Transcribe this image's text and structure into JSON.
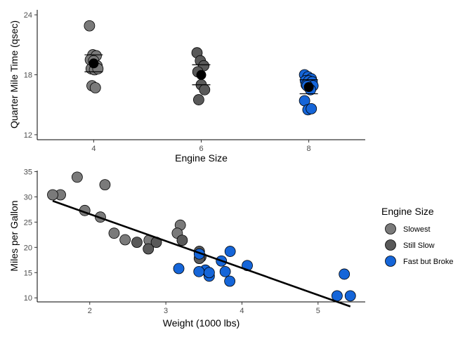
{
  "legend": {
    "title": "Engine Size",
    "position": "right",
    "items": [
      {
        "label": "Slowest",
        "color": "#7a7a7a"
      },
      {
        "label": "Still Slow",
        "color": "#595959"
      },
      {
        "label": "Fast but Broke",
        "color": "#1565d8"
      }
    ]
  },
  "chart_data": [
    {
      "type": "scatter",
      "xlabel": "Engine Size",
      "ylabel": "Quarter Mile Time (qsec)",
      "categories": [
        4,
        6,
        8
      ],
      "xlim": [
        2.95,
        9.05
      ],
      "ylim": [
        11.5,
        24.5
      ],
      "yticks": [
        12,
        18,
        24
      ],
      "grid": false,
      "series": [
        {
          "name": "Slowest",
          "color": "#7a7a7a",
          "points": [
            [
              4,
              22.9
            ],
            [
              4,
              20.0
            ],
            [
              4,
              19.9
            ],
            [
              4,
              19.5
            ],
            [
              4,
              19.4
            ],
            [
              4,
              18.9
            ],
            [
              4,
              18.6
            ],
            [
              4,
              18.5
            ],
            [
              4,
              18.6
            ],
            [
              4,
              16.9
            ],
            [
              4,
              16.7
            ]
          ]
        },
        {
          "name": "Still Slow",
          "color": "#595959",
          "points": [
            [
              6,
              20.2
            ],
            [
              6,
              19.4
            ],
            [
              6,
              18.9
            ],
            [
              6,
              18.3
            ],
            [
              6,
              17.0
            ],
            [
              6,
              16.5
            ],
            [
              6,
              15.5
            ]
          ]
        },
        {
          "name": "Fast but Broke",
          "color": "#1565d8",
          "points": [
            [
              8,
              18.0
            ],
            [
              8,
              17.8
            ],
            [
              8,
              17.6
            ],
            [
              8,
              17.4
            ],
            [
              8,
              17.4
            ],
            [
              8,
              17.3
            ],
            [
              8,
              17.0
            ],
            [
              8,
              17.0
            ],
            [
              8,
              16.9
            ],
            [
              8,
              16.9
            ],
            [
              8,
              16.5
            ],
            [
              8,
              15.4
            ],
            [
              8,
              14.5
            ],
            [
              8,
              14.6
            ]
          ]
        }
      ],
      "summary": [
        {
          "x": 4,
          "mean": 19.14,
          "lower": 18.3,
          "upper": 20.0
        },
        {
          "x": 6,
          "mean": 17.98,
          "lower": 17.0,
          "upper": 19.0
        },
        {
          "x": 8,
          "mean": 16.77,
          "lower": 16.1,
          "upper": 17.5
        }
      ]
    },
    {
      "type": "scatter",
      "xlabel": "Weight (1000 lbs)",
      "ylabel": "Miles per Gallon",
      "xlim": [
        1.31,
        5.62
      ],
      "ylim": [
        9.2,
        35.2
      ],
      "xticks": [
        2,
        3,
        4,
        5
      ],
      "yticks": [
        10,
        15,
        20,
        25,
        30,
        35
      ],
      "grid": false,
      "fit_line": {
        "x": [
          1.513,
          5.424
        ],
        "y": [
          29.2,
          8.3
        ]
      },
      "series": [
        {
          "name": "Slowest",
          "color": "#7a7a7a",
          "points": [
            [
              2.32,
              22.8
            ],
            [
              3.19,
              24.4
            ],
            [
              3.15,
              22.8
            ],
            [
              2.2,
              32.4
            ],
            [
              1.615,
              30.4
            ],
            [
              1.835,
              33.9
            ],
            [
              2.465,
              21.5
            ],
            [
              1.935,
              27.3
            ],
            [
              2.14,
              26.0
            ],
            [
              1.513,
              30.4
            ],
            [
              2.78,
              21.4
            ]
          ]
        },
        {
          "name": "Still Slow",
          "color": "#595959",
          "points": [
            [
              2.62,
              21.0
            ],
            [
              2.875,
              21.0
            ],
            [
              3.215,
              21.4
            ],
            [
              3.46,
              18.1
            ],
            [
              3.44,
              19.2
            ],
            [
              3.44,
              17.8
            ],
            [
              2.77,
              19.7
            ]
          ]
        },
        {
          "name": "Fast but Broke",
          "color": "#1565d8",
          "points": [
            [
              3.44,
              18.7
            ],
            [
              3.57,
              14.3
            ],
            [
              4.07,
              16.4
            ],
            [
              3.73,
              17.3
            ],
            [
              3.78,
              15.2
            ],
            [
              5.25,
              10.4
            ],
            [
              5.424,
              10.4
            ],
            [
              5.345,
              14.7
            ],
            [
              3.52,
              15.5
            ],
            [
              3.435,
              15.2
            ],
            [
              3.84,
              13.3
            ],
            [
              3.845,
              19.2
            ],
            [
              3.17,
              15.8
            ],
            [
              3.57,
              15.0
            ]
          ]
        }
      ]
    }
  ]
}
